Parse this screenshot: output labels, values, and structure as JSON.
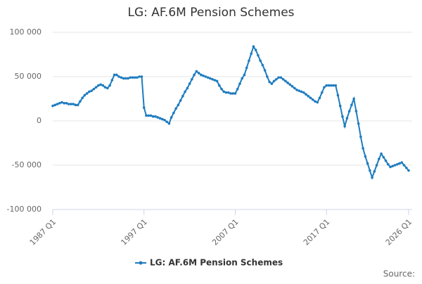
{
  "chart_data": {
    "type": "line",
    "title": "LG: AF.6M Pension Schemes",
    "source": "Source:",
    "categories": [
      "1987 Q1",
      null,
      null,
      null,
      null,
      null,
      null,
      null,
      null,
      null,
      null,
      null,
      null,
      null,
      null,
      null,
      null,
      null,
      null,
      null,
      null,
      null,
      null,
      null,
      null,
      null,
      null,
      null,
      null,
      null,
      null,
      null,
      null,
      null,
      null,
      null,
      null,
      null,
      null,
      null,
      "1997 Q1",
      null,
      null,
      null,
      null,
      null,
      null,
      null,
      null,
      null,
      null,
      null,
      null,
      null,
      null,
      null,
      null,
      null,
      null,
      null,
      null,
      null,
      null,
      null,
      null,
      null,
      null,
      null,
      null,
      null,
      null,
      null,
      null,
      null,
      null,
      null,
      null,
      null,
      null,
      null,
      "2007 Q1",
      null,
      null,
      null,
      null,
      null,
      null,
      null,
      null,
      null,
      null,
      null,
      null,
      null,
      null,
      null,
      null,
      null,
      null,
      null,
      null,
      null,
      null,
      null,
      null,
      null,
      null,
      null,
      null,
      null,
      null,
      null,
      null,
      null,
      null,
      null,
      null,
      null,
      null,
      null,
      "2017 Q1",
      null,
      null,
      null,
      null,
      null,
      null,
      null,
      null,
      null,
      null,
      null,
      null,
      null,
      null,
      null,
      null,
      null,
      null,
      null,
      null,
      null,
      null,
      null,
      null,
      null,
      null,
      null,
      null,
      null,
      null,
      null,
      null,
      null,
      null,
      null,
      "2026 Q1"
    ],
    "series": [
      {
        "name": "LG: AF.6M Pension Schemes",
        "color": "#1f7cbf",
        "values": [
          17000,
          18000,
          19000,
          20000,
          21000,
          20000,
          20000,
          19000,
          19000,
          19000,
          18000,
          18000,
          22000,
          26000,
          29000,
          31000,
          33000,
          34000,
          36000,
          38000,
          40000,
          41000,
          40000,
          38000,
          37000,
          40000,
          46000,
          52000,
          52000,
          50000,
          49000,
          48000,
          48000,
          48000,
          49000,
          49000,
          49000,
          49000,
          50000,
          50000,
          15000,
          6000,
          6000,
          6000,
          5000,
          5000,
          4000,
          3000,
          2000,
          1000,
          -1000,
          -3000,
          4000,
          9000,
          14000,
          18000,
          23000,
          28000,
          33000,
          37000,
          42000,
          47000,
          52000,
          56000,
          54000,
          52000,
          51000,
          50000,
          49000,
          48000,
          47000,
          46000,
          45000,
          40000,
          36000,
          33000,
          32000,
          32000,
          31000,
          31000,
          31000,
          36000,
          42000,
          48000,
          52000,
          60000,
          68000,
          76000,
          84000,
          80000,
          74000,
          68000,
          63000,
          57000,
          50000,
          44000,
          42000,
          45000,
          47000,
          49000,
          49000,
          47000,
          45000,
          43000,
          41000,
          39000,
          37000,
          35000,
          34000,
          33000,
          32000,
          30000,
          28000,
          26000,
          24000,
          22000,
          21000,
          26000,
          32000,
          38000,
          40000,
          40000,
          40000,
          40000,
          40000,
          29000,
          17000,
          5000,
          -6000,
          3000,
          11000,
          18000,
          25000,
          11000,
          -3000,
          -18000,
          -31000,
          -40000,
          -48000,
          -56000,
          -64000,
          -57000,
          -50000,
          -43000,
          -37000,
          -41000,
          -45000,
          -49000,
          -52000,
          -51000,
          -50000,
          -49000,
          -48000,
          -47000,
          -50000,
          -53000,
          -56000
        ]
      }
    ],
    "ylim": [
      -100000,
      100000
    ],
    "yticks": [
      {
        "value": -100000,
        "label": "-100 000"
      },
      {
        "value": -50000,
        "label": "-50 000"
      },
      0,
      {
        "value": 50000,
        "label": "50 000"
      },
      {
        "value": 100000,
        "label": "100 000"
      }
    ],
    "grid": true,
    "legend": "bottom"
  }
}
